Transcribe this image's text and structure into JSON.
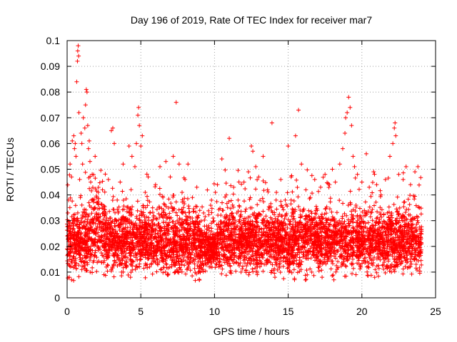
{
  "chart_data": {
    "type": "scatter",
    "title": "Day 196 of 2019, Rate Of TEC Index for receiver mar7",
    "xlabel": "GPS time / hours",
    "ylabel": "ROTI / TECUs",
    "xlim": [
      0,
      25
    ],
    "ylim": [
      0,
      0.1
    ],
    "xticks": [
      "0",
      "5",
      "10",
      "15",
      "20",
      "25"
    ],
    "yticks": [
      "0",
      "0.01",
      "0.02",
      "0.03",
      "0.04",
      "0.05",
      "0.06",
      "0.07",
      "0.08",
      "0.09",
      "0.1"
    ],
    "grid": true,
    "marker": "+",
    "color": "#ff0000",
    "series": [
      {
        "name": "ROTI",
        "points": [
          [
            0.0,
            0.019
          ],
          [
            0.05,
            0.033
          ],
          [
            0.1,
            0.038
          ],
          [
            0.15,
            0.008
          ],
          [
            0.2,
            0.052
          ],
          [
            0.25,
            0.023
          ],
          [
            0.3,
            0.047
          ],
          [
            0.35,
            0.061
          ],
          [
            0.4,
            0.029
          ],
          [
            0.45,
            0.063
          ],
          [
            0.5,
            0.058
          ],
          [
            0.55,
            0.06
          ],
          [
            0.6,
            0.055
          ],
          [
            0.65,
            0.084
          ],
          [
            0.7,
            0.092
          ],
          [
            0.72,
            0.096
          ],
          [
            0.75,
            0.098
          ],
          [
            0.78,
            0.094
          ],
          [
            0.8,
            0.072
          ],
          [
            0.85,
            0.046
          ],
          [
            0.9,
            0.039
          ],
          [
            0.95,
            0.064
          ],
          [
            1.0,
            0.06
          ],
          [
            1.05,
            0.052
          ],
          [
            1.1,
            0.07
          ],
          [
            1.15,
            0.012
          ],
          [
            1.2,
            0.066
          ],
          [
            1.25,
            0.075
          ],
          [
            1.3,
            0.081
          ],
          [
            1.35,
            0.08
          ],
          [
            1.4,
            0.067
          ],
          [
            1.45,
            0.058
          ],
          [
            1.5,
            0.061
          ],
          [
            1.55,
            0.053
          ],
          [
            1.6,
            0.045
          ],
          [
            1.65,
            0.038
          ],
          [
            1.7,
            0.048
          ],
          [
            1.8,
            0.021
          ],
          [
            1.9,
            0.055
          ],
          [
            2.0,
            0.037
          ],
          [
            2.2,
            0.029
          ],
          [
            2.4,
            0.042
          ],
          [
            2.6,
            0.033
          ],
          [
            2.8,
            0.046
          ],
          [
            3.0,
            0.065
          ],
          [
            3.1,
            0.066
          ],
          [
            3.2,
            0.06
          ],
          [
            3.4,
            0.038
          ],
          [
            3.6,
            0.045
          ],
          [
            3.8,
            0.052
          ],
          [
            4.0,
            0.031
          ],
          [
            4.2,
            0.059
          ],
          [
            4.4,
            0.055
          ],
          [
            4.6,
            0.051
          ],
          [
            4.7,
            0.06
          ],
          [
            4.8,
            0.071
          ],
          [
            4.85,
            0.074
          ],
          [
            4.9,
            0.067
          ],
          [
            5.0,
            0.059
          ],
          [
            5.1,
            0.063
          ],
          [
            5.3,
            0.041
          ],
          [
            5.5,
            0.047
          ],
          [
            5.8,
            0.035
          ],
          [
            6.0,
            0.044
          ],
          [
            6.3,
            0.051
          ],
          [
            6.5,
            0.039
          ],
          [
            6.7,
            0.053
          ],
          [
            7.0,
            0.047
          ],
          [
            7.2,
            0.055
          ],
          [
            7.4,
            0.076
          ],
          [
            7.6,
            0.052
          ],
          [
            7.8,
            0.041
          ],
          [
            8.0,
            0.046
          ],
          [
            8.2,
            0.052
          ],
          [
            8.5,
            0.039
          ],
          [
            8.8,
            0.043
          ],
          [
            9.0,
            0.034
          ],
          [
            9.3,
            0.025
          ],
          [
            9.6,
            0.028
          ],
          [
            9.9,
            0.031
          ],
          [
            10.2,
            0.044
          ],
          [
            10.5,
            0.054
          ],
          [
            10.8,
            0.04
          ],
          [
            11.0,
            0.062
          ],
          [
            11.3,
            0.043
          ],
          [
            11.6,
            0.038
          ],
          [
            12.0,
            0.045
          ],
          [
            12.3,
            0.049
          ],
          [
            12.5,
            0.059
          ],
          [
            12.6,
            0.057
          ],
          [
            12.8,
            0.051
          ],
          [
            13.0,
            0.047
          ],
          [
            13.3,
            0.055
          ],
          [
            13.6,
            0.042
          ],
          [
            13.9,
            0.068
          ],
          [
            14.2,
            0.041
          ],
          [
            14.5,
            0.046
          ],
          [
            14.8,
            0.038
          ],
          [
            15.0,
            0.059
          ],
          [
            15.2,
            0.047
          ],
          [
            15.5,
            0.063
          ],
          [
            15.7,
            0.073
          ],
          [
            15.9,
            0.052
          ],
          [
            16.2,
            0.042
          ],
          [
            16.5,
            0.039
          ],
          [
            16.8,
            0.046
          ],
          [
            17.2,
            0.043
          ],
          [
            17.5,
            0.048
          ],
          [
            17.8,
            0.044
          ],
          [
            18.0,
            0.05
          ],
          [
            18.2,
            0.045
          ],
          [
            18.5,
            0.052
          ],
          [
            18.7,
            0.058
          ],
          [
            18.85,
            0.064
          ],
          [
            18.9,
            0.07
          ],
          [
            19.0,
            0.072
          ],
          [
            19.1,
            0.078
          ],
          [
            19.2,
            0.074
          ],
          [
            19.3,
            0.067
          ],
          [
            19.4,
            0.055
          ],
          [
            19.5,
            0.051
          ],
          [
            19.7,
            0.048
          ],
          [
            20.0,
            0.045
          ],
          [
            20.3,
            0.056
          ],
          [
            20.5,
            0.043
          ],
          [
            20.8,
            0.049
          ],
          [
            21.0,
            0.044
          ],
          [
            21.3,
            0.04
          ],
          [
            21.6,
            0.046
          ],
          [
            21.9,
            0.055
          ],
          [
            22.1,
            0.06
          ],
          [
            22.2,
            0.066
          ],
          [
            22.25,
            0.068
          ],
          [
            22.3,
            0.063
          ],
          [
            22.5,
            0.048
          ],
          [
            22.8,
            0.046
          ],
          [
            23.0,
            0.051
          ],
          [
            23.3,
            0.044
          ],
          [
            23.6,
            0.049
          ],
          [
            23.8,
            0.051
          ],
          [
            23.9,
            0.035
          ],
          [
            24.0,
            0.018
          ],
          [
            0.3,
            0.007
          ],
          [
            1.0,
            0.011
          ],
          [
            2.5,
            0.009
          ],
          [
            3.7,
            0.01
          ],
          [
            4.3,
            0.008
          ],
          [
            5.6,
            0.012
          ],
          [
            6.8,
            0.009
          ],
          [
            7.7,
            0.011
          ],
          [
            9.1,
            0.013
          ],
          [
            10.3,
            0.012
          ],
          [
            11.8,
            0.01
          ],
          [
            12.9,
            0.009
          ],
          [
            14.1,
            0.008
          ],
          [
            15.4,
            0.011
          ],
          [
            16.6,
            0.01
          ],
          [
            17.3,
            0.008
          ],
          [
            18.1,
            0.007
          ],
          [
            19.6,
            0.009
          ],
          [
            20.9,
            0.011
          ],
          [
            22.0,
            0.01
          ],
          [
            23.2,
            0.012
          ]
        ]
      }
    ]
  }
}
